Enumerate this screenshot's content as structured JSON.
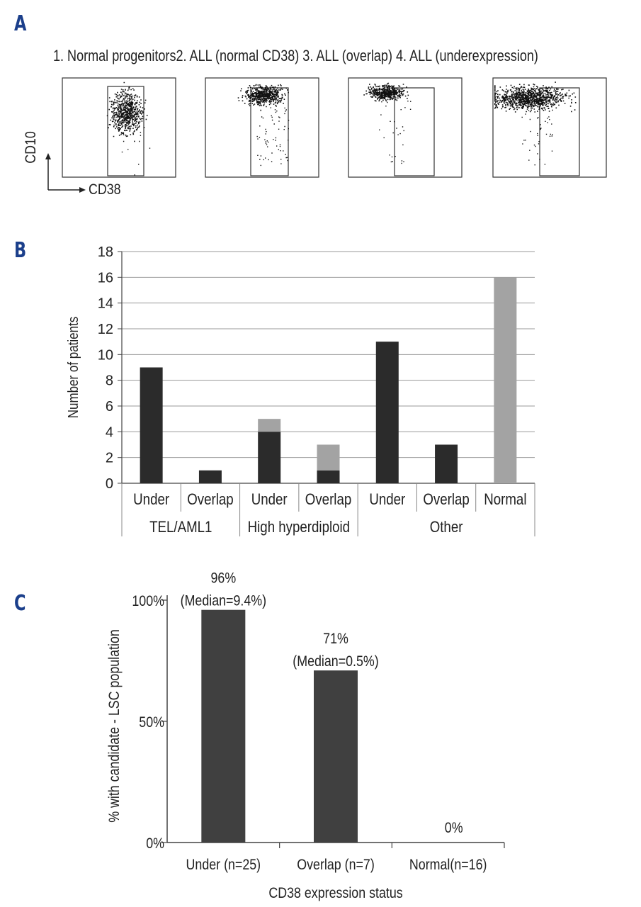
{
  "panel_a": {
    "letter": "A",
    "titles": [
      "1. Normal progenitors",
      "2. ALL (normal CD38)",
      "3. ALL (overlap)",
      "4. ALL (underexpression)"
    ],
    "y_axis_label": "CD10",
    "x_axis_label": "CD38",
    "colors": {
      "dots": "#111111",
      "frame": "#333333"
    }
  },
  "panel_b": {
    "letter": "B",
    "colors": {
      "dark": "#2b2b2b",
      "light": "#a3a3a3",
      "grid": "#9a9a9a"
    }
  },
  "panel_c": {
    "letter": "C",
    "colors": {
      "bar": "#404040"
    }
  },
  "chart_data": [
    {
      "id": "panel-b",
      "type": "bar",
      "stacked": true,
      "title": "",
      "xlabel": "",
      "ylabel": "Number of patients",
      "ylim": [
        0,
        18
      ],
      "yticks": [
        0,
        2,
        4,
        6,
        8,
        10,
        12,
        14,
        16,
        18
      ],
      "grid": true,
      "categories": [
        "Under",
        "Overlap",
        "Under",
        "Overlap",
        "Under",
        "Overlap",
        "Normal"
      ],
      "groups": [
        {
          "label": "TEL/AML1",
          "span": [
            0,
            1
          ]
        },
        {
          "label": "High hyperdiploid",
          "span": [
            2,
            3
          ]
        },
        {
          "label": "Other",
          "span": [
            4,
            6
          ]
        }
      ],
      "series": [
        {
          "name": "dark",
          "color": "#2b2b2b",
          "values": [
            9,
            1,
            4,
            1,
            11,
            3,
            0
          ]
        },
        {
          "name": "light",
          "color": "#a3a3a3",
          "values": [
            0,
            0,
            1,
            2,
            0,
            0,
            16
          ]
        }
      ]
    },
    {
      "id": "panel-c",
      "type": "bar",
      "title": "",
      "xlabel": "CD38 expression status",
      "ylabel": "% with candidate - LSC population",
      "ylim": [
        0,
        100
      ],
      "yticks": [
        0,
        50,
        100
      ],
      "ytick_labels": [
        "0%",
        "50%",
        "100%"
      ],
      "categories": [
        "Under (n=25)",
        "Overlap (n=7)",
        "Normal(n=16)"
      ],
      "values": [
        96,
        71,
        0
      ],
      "annotations": [
        {
          "value_label": "96%",
          "median_label": "(Median=9.4%)"
        },
        {
          "value_label": "71%",
          "median_label": "(Median=0.5%)"
        },
        {
          "value_label": "0%",
          "median_label": ""
        }
      ]
    }
  ]
}
